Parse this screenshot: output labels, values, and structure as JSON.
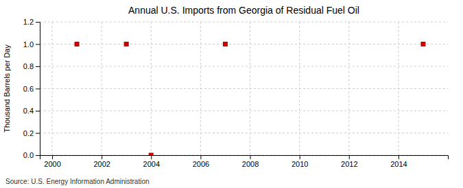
{
  "chart_data": {
    "type": "scatter",
    "title": "Annual U.S. Imports from Georgia of Residual Fuel Oil",
    "y_label": "Thousand Barrels per Day",
    "annotations": [
      "Source: U.S. Energy Information Administration"
    ],
    "x": [
      2001,
      2003,
      2004,
      2007,
      2015
    ],
    "values": [
      1.0,
      1.0,
      0.0,
      1.0,
      1.0
    ],
    "color": "#cc0000",
    "marker": "square",
    "xlim": [
      1999.5,
      2016.0
    ],
    "ylim": [
      0.0,
      1.2
    ],
    "xticks": [
      2000,
      2002,
      2004,
      2006,
      2008,
      2010,
      2012,
      2014
    ],
    "yticks": [
      {
        "value": 0.0,
        "label": "0.0"
      },
      0.2,
      0.4,
      0.6,
      0.8,
      {
        "value": 1.0,
        "label": "1.0"
      },
      1.2
    ],
    "grid": true
  }
}
